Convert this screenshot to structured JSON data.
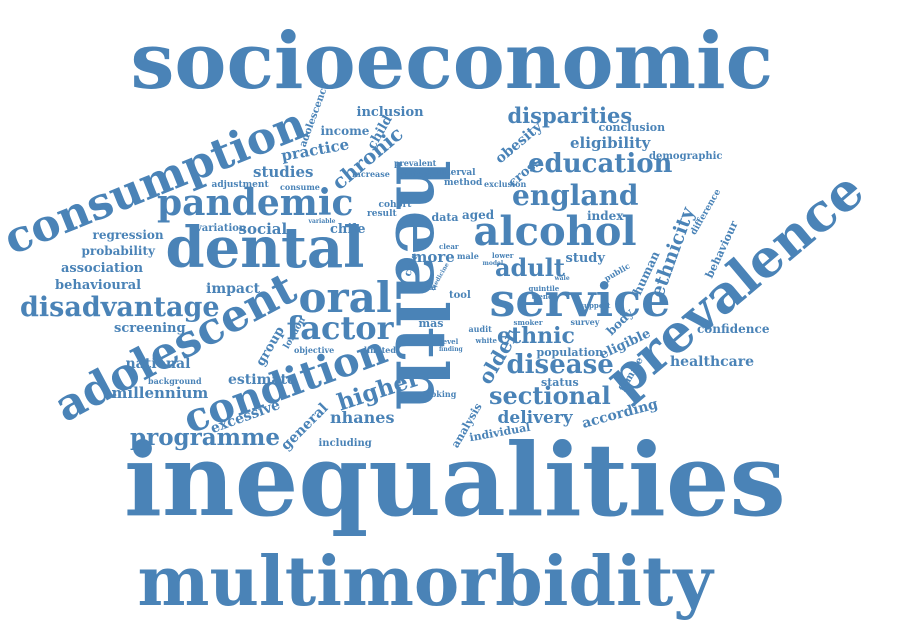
{
  "colors": {
    "text": "#4a83b7",
    "background": "#ffffff"
  },
  "words": [
    "socioeconomic",
    "inequalities",
    "multimorbidity",
    "health",
    "prevalence",
    "consumption",
    "dental",
    "service",
    "adolescent",
    "condition",
    "pandemic",
    "oral",
    "alcohol",
    "england",
    "education",
    "factor",
    "disease",
    "sectional",
    "disadvantage",
    "programme",
    "disparities",
    "ethnicity",
    "adult",
    "higher",
    "ethnic",
    "older",
    "chronic",
    "practice",
    "studies",
    "healthcare",
    "millennium",
    "national",
    "estimate",
    "nhanes",
    "delivery",
    "according",
    "excessive",
    "general",
    "group",
    "screening",
    "behavioural",
    "association",
    "probability",
    "regression",
    "impact",
    "social",
    "chile",
    "more",
    "study",
    "human",
    "behaviour",
    "confidence",
    "eligible",
    "body",
    "female",
    "population",
    "status",
    "individual",
    "analysis",
    "including",
    "eligibility",
    "conclusion",
    "demographic",
    "obesity",
    "cross",
    "child",
    "income",
    "inclusion",
    "adolescence",
    "index",
    "difference",
    "aged",
    "data",
    "result",
    "cohort",
    "method",
    "interval",
    "patient",
    "prevalent",
    "increase",
    "adjustment",
    "consume",
    "variation",
    "london",
    "objective",
    "limited",
    "background",
    "smoking",
    "survey",
    "smoker",
    "support",
    "public",
    "care",
    "tool",
    "exclusion",
    "mas",
    "audit",
    "level",
    "finding",
    "white",
    "lower",
    "model",
    "quintile",
    "trend",
    "clear",
    "male",
    "variable",
    "sar",
    "wale",
    "medicine"
  ]
}
